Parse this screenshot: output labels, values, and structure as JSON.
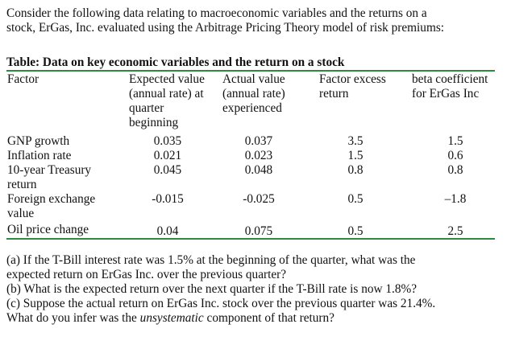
{
  "intro": {
    "line1": "Consider the following data relating to macroeconomic variables and the returns on a",
    "line2": "stock, ErGas, Inc. evaluated using the Arbitrage Pricing Theory model of risk premiums:"
  },
  "table": {
    "title": "Table: Data on key economic variables and the return on a stock",
    "headers": {
      "factor": "Factor",
      "expected": [
        "Expected value",
        "(annual rate) at",
        "quarter",
        "beginning"
      ],
      "actual": [
        "Actual value",
        "(annual rate)",
        "experienced"
      ],
      "excess": [
        "Factor excess",
        "return"
      ],
      "beta": [
        "beta coefficient",
        "for ErGas Inc"
      ]
    },
    "rows": [
      {
        "factor": [
          "GNP growth"
        ],
        "expected": "0.035",
        "actual": "0.037",
        "excess": "3.5",
        "beta": "1.5"
      },
      {
        "factor": [
          "Inflation rate"
        ],
        "expected": "0.021",
        "actual": "0.023",
        "excess": "1.5",
        "beta": "0.6"
      },
      {
        "factor": [
          "10-year Treasury",
          "return"
        ],
        "expected": "0.045",
        "actual": "0.048",
        "excess": "0.8",
        "beta": "0.8"
      },
      {
        "factor": [
          "Foreign exchange",
          "value"
        ],
        "expected": "-0.015",
        "actual": "-0.025",
        "excess": "0.5",
        "beta": "–1.8"
      },
      {
        "factor": [
          "Oil price change"
        ],
        "expected": "0.04",
        "actual": "0.075",
        "excess": "0.5",
        "beta": "2.5"
      }
    ]
  },
  "questions": {
    "a_line1": "(a) If the T-Bill interest rate was 1.5% at the beginning of the quarter, what was the",
    "a_line2": "expected return on ErGas Inc. over the previous quarter?",
    "b": "(b) What is the expected return over the next quarter if the T-Bill rate is now 1.8%?",
    "c_line1": "(c) Suppose the actual return on ErGas Inc. stock over the previous quarter was 21.4%.",
    "c_pre": "What do you infer was the ",
    "c_em": "unsystematic",
    "c_post": " component of that return?"
  },
  "colors": {
    "rule": "#2e8b3e",
    "text": "#111111"
  }
}
